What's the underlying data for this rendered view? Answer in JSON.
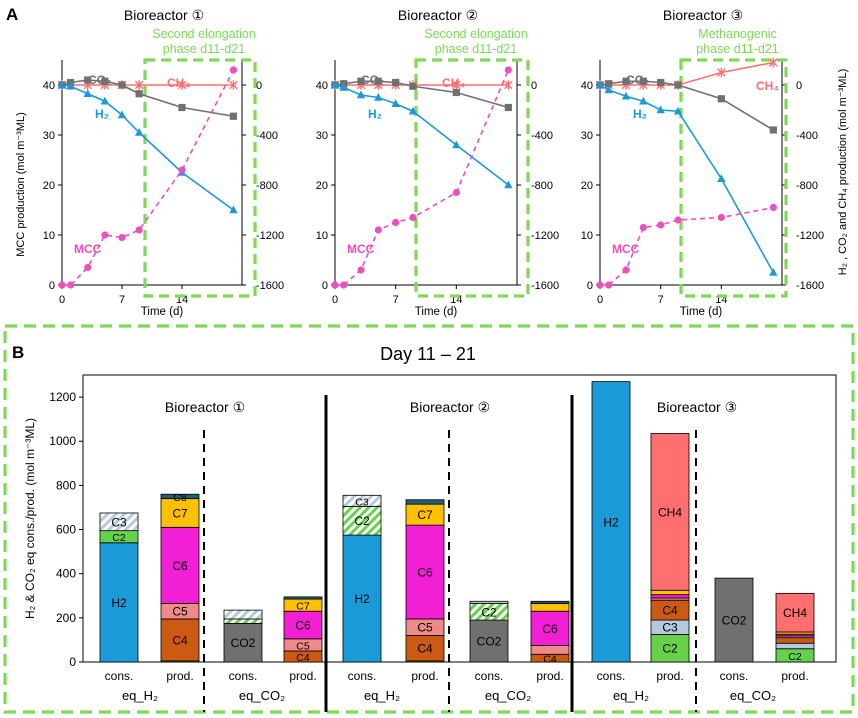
{
  "panel_a_label": "A",
  "panel_b_label": "B",
  "colors": {
    "H2": "#1a9ad6",
    "CO2": "#707070",
    "CH4": "#ff6f6f",
    "MCC": "#ef4ec0",
    "C2": "#66d14a",
    "C3": "#b7c9de",
    "C4": "#cc5a15",
    "C5": "#ef8a8a",
    "C6": "#f21fd4",
    "C7": "#ffc000",
    "C8": "#1f5f7a",
    "green_dash": "#7ed957"
  },
  "chart_data": [
    {
      "type": "line",
      "panel": "A1",
      "title": "Bioreactor ①",
      "annotation": [
        "Second elongation",
        "phase d11-d21"
      ],
      "xlabel": "Time (d)",
      "xticks": [
        0,
        7,
        14
      ],
      "ylabel_left": "MCC production (mol m⁻³ML)",
      "ylim_left": [
        0,
        45
      ],
      "yticks_left": [
        0,
        10,
        20,
        30,
        40
      ],
      "ylabel_right": "H₂ , CO₂ and CH₄ production (mol m⁻³ML)",
      "ylim_right": [
        -1600,
        200
      ],
      "yticks_right": [
        0,
        -400,
        -800,
        -1200,
        -1600
      ],
      "xlim": [
        0,
        21
      ],
      "series": [
        {
          "name": "MCC",
          "label": "MCC",
          "axis": "left",
          "x": [
            0,
            1,
            3,
            5,
            7,
            9,
            14,
            20
          ],
          "y": [
            0,
            0,
            3.5,
            10,
            9.5,
            11,
            23,
            43
          ]
        },
        {
          "name": "CO2",
          "label": "CO₂",
          "axis": "right",
          "x": [
            0,
            1,
            3,
            5,
            7,
            9,
            14,
            20
          ],
          "y": [
            0,
            20,
            40,
            30,
            0,
            -70,
            -180,
            -250
          ]
        },
        {
          "name": "CH4",
          "label": "CH₄",
          "axis": "right",
          "x": [
            0,
            1,
            3,
            5,
            7,
            9,
            14,
            20
          ],
          "y": [
            0,
            0,
            0,
            0,
            0,
            0,
            0,
            0
          ]
        },
        {
          "name": "H2",
          "label": "H₂",
          "axis": "right",
          "x": [
            0,
            1,
            3,
            5,
            7,
            9,
            14,
            20
          ],
          "y": [
            0,
            -10,
            -70,
            -130,
            -240,
            -380,
            -700,
            -1000
          ]
        }
      ]
    },
    {
      "type": "line",
      "panel": "A2",
      "title": "Bioreactor ②",
      "annotation": [
        "Second elongation",
        "phase d11-d21"
      ],
      "xlabel": "Time (d)",
      "xticks": [
        0,
        7,
        14
      ],
      "ylim_left": [
        0,
        45
      ],
      "yticks_left": [
        0,
        10,
        20,
        30,
        40
      ],
      "ylim_right": [
        -1600,
        200
      ],
      "yticks_right": [
        0,
        -400,
        -800,
        -1200,
        -1600
      ],
      "xlim": [
        0,
        21
      ],
      "series": [
        {
          "name": "MCC",
          "label": "MCC",
          "axis": "left",
          "x": [
            0,
            1,
            3,
            5,
            7,
            9,
            14,
            20
          ],
          "y": [
            0,
            0,
            3,
            11,
            12.5,
            13.5,
            18.5,
            43
          ]
        },
        {
          "name": "CO2",
          "label": "CO₂",
          "axis": "right",
          "x": [
            0,
            1,
            3,
            5,
            7,
            9,
            14,
            20
          ],
          "y": [
            0,
            10,
            30,
            30,
            20,
            -10,
            -60,
            -180
          ]
        },
        {
          "name": "CH4",
          "label": "CH₄",
          "axis": "right",
          "x": [
            0,
            1,
            3,
            5,
            7,
            9,
            14,
            20
          ],
          "y": [
            0,
            0,
            0,
            0,
            0,
            0,
            0,
            0
          ]
        },
        {
          "name": "H2",
          "label": "H₂",
          "axis": "right",
          "x": [
            0,
            1,
            3,
            5,
            7,
            9,
            14,
            20
          ],
          "y": [
            0,
            -20,
            -80,
            -100,
            -150,
            -210,
            -480,
            -800
          ]
        }
      ]
    },
    {
      "type": "line",
      "panel": "A3",
      "title": "Bioreactor ③",
      "annotation": [
        "Methanogenic",
        "phase d11-d21"
      ],
      "xlabel": "Time (d)",
      "xticks": [
        0,
        7,
        14
      ],
      "ylim_left": [
        0,
        45
      ],
      "yticks_left": [
        0,
        10,
        20,
        30,
        40
      ],
      "ylim_right": [
        -1600,
        200
      ],
      "yticks_right": [
        0,
        -400,
        -800,
        -1200,
        -1600
      ],
      "xlim": [
        0,
        21
      ],
      "series": [
        {
          "name": "MCC",
          "label": "MCC",
          "axis": "left",
          "x": [
            0,
            1,
            3,
            5,
            7,
            9,
            14,
            20
          ],
          "y": [
            0,
            0,
            3,
            11.5,
            12,
            13,
            13.5,
            15.5
          ]
        },
        {
          "name": "CO2",
          "label": "CO₂",
          "axis": "right",
          "x": [
            0,
            1,
            3,
            5,
            7,
            9,
            14,
            20
          ],
          "y": [
            0,
            10,
            30,
            30,
            20,
            0,
            -110,
            -360
          ]
        },
        {
          "name": "CH4",
          "label": "CH₄",
          "axis": "right",
          "x": [
            0,
            1,
            3,
            5,
            7,
            9,
            14,
            20
          ],
          "y": [
            0,
            0,
            0,
            0,
            0,
            0,
            100,
            180
          ]
        },
        {
          "name": "H2",
          "label": "H₂",
          "axis": "right",
          "x": [
            0,
            1,
            3,
            5,
            7,
            9,
            14,
            20
          ],
          "y": [
            0,
            -40,
            -90,
            -130,
            -200,
            -210,
            -750,
            -1500
          ]
        }
      ]
    },
    {
      "type": "bar",
      "stacked": true,
      "panel": "B",
      "title": "Day 11 – 21",
      "ylabel": "H₂ & CO₂ eq cons./prod. (mol m⁻³ML)",
      "ylim": [
        0,
        1300
      ],
      "yticks": [
        0,
        200,
        400,
        600,
        800,
        1000,
        1200
      ],
      "reactors": [
        "Bioreactor ①",
        "Bioreactor ②",
        "Bioreactor ③"
      ],
      "group_labels": [
        "eq_H₂",
        "eq_CO₂"
      ],
      "bar_labels": [
        "cons.",
        "prod."
      ],
      "bars": [
        {
          "reactor": 1,
          "group": "eq_H2",
          "bar": "cons.",
          "segments": [
            {
              "name": "H2",
              "label": "H2",
              "value": 540
            },
            {
              "name": "C2",
              "label": "C2",
              "value": 55,
              "hatch": false
            },
            {
              "name": "C3",
              "label": "C3",
              "value": 80,
              "hatch": true
            }
          ]
        },
        {
          "reactor": 1,
          "group": "eq_H2",
          "bar": "prod.",
          "segments": [
            {
              "name": "C2",
              "value": 5
            },
            {
              "name": "C4",
              "label": "C4",
              "value": 190
            },
            {
              "name": "C5",
              "label": "C5",
              "value": 70
            },
            {
              "name": "C6",
              "label": "C6",
              "value": 345
            },
            {
              "name": "C7",
              "label": "C7",
              "value": 130
            },
            {
              "name": "C8",
              "label": "C8",
              "value": 20
            }
          ]
        },
        {
          "reactor": 1,
          "group": "eq_CO2",
          "bar": "cons.",
          "segments": [
            {
              "name": "CO2",
              "label": "CO2",
              "value": 175
            },
            {
              "name": "C2",
              "value": 20,
              "hatch": true
            },
            {
              "name": "C3",
              "value": 40,
              "hatch": true
            }
          ]
        },
        {
          "reactor": 1,
          "group": "eq_CO2",
          "bar": "prod.",
          "segments": [
            {
              "name": "C4",
              "label": "C4",
              "value": 50
            },
            {
              "name": "C5",
              "label": "C5",
              "value": 55
            },
            {
              "name": "C6",
              "label": "C6",
              "value": 125
            },
            {
              "name": "C7",
              "label": "C7",
              "value": 55
            },
            {
              "name": "C8",
              "value": 10
            }
          ]
        },
        {
          "reactor": 2,
          "group": "eq_H2",
          "bar": "cons.",
          "segments": [
            {
              "name": "H2",
              "label": "H2",
              "value": 575
            },
            {
              "name": "C2",
              "label": "C2",
              "value": 130,
              "hatch": true
            },
            {
              "name": "C3",
              "label": "C3",
              "value": 50,
              "hatch": true
            }
          ]
        },
        {
          "reactor": 2,
          "group": "eq_H2",
          "bar": "prod.",
          "segments": [
            {
              "name": "C2",
              "value": 5
            },
            {
              "name": "C4",
              "label": "C4",
              "value": 115
            },
            {
              "name": "C5",
              "label": "C5",
              "value": 75
            },
            {
              "name": "C6",
              "label": "C6",
              "value": 425
            },
            {
              "name": "C7",
              "label": "C7",
              "value": 95
            },
            {
              "name": "C8",
              "value": 20
            }
          ]
        },
        {
          "reactor": 2,
          "group": "eq_CO2",
          "bar": "cons.",
          "segments": [
            {
              "name": "CO2",
              "label": "CO2",
              "value": 190
            },
            {
              "name": "C2",
              "label": "C2",
              "value": 75,
              "hatch": true
            },
            {
              "name": "C3",
              "value": 10
            }
          ]
        },
        {
          "reactor": 2,
          "group": "eq_CO2",
          "bar": "prod.",
          "segments": [
            {
              "name": "C4",
              "label": "C4",
              "value": 35
            },
            {
              "name": "C5",
              "value": 40
            },
            {
              "name": "C6",
              "label": "C6",
              "value": 155
            },
            {
              "name": "C7",
              "value": 35
            },
            {
              "name": "C8",
              "value": 10
            }
          ]
        },
        {
          "reactor": 3,
          "group": "eq_H2",
          "bar": "cons.",
          "segments": [
            {
              "name": "H2",
              "label": "H2",
              "value": 1270
            }
          ]
        },
        {
          "reactor": 3,
          "group": "eq_H2",
          "bar": "prod.",
          "segments": [
            {
              "name": "C2",
              "label": "C2",
              "value": 125
            },
            {
              "name": "C3",
              "label": "C3",
              "value": 65
            },
            {
              "name": "C4",
              "label": "C4",
              "value": 90
            },
            {
              "name": "C5",
              "value": 10
            },
            {
              "name": "C6",
              "value": 15
            },
            {
              "name": "C7",
              "value": 20
            },
            {
              "name": "CH4",
              "label": "CH4",
              "value": 710
            }
          ]
        },
        {
          "reactor": 3,
          "group": "eq_CO2",
          "bar": "cons.",
          "segments": [
            {
              "name": "CO2",
              "label": "CO2",
              "value": 380
            }
          ]
        },
        {
          "reactor": 3,
          "group": "eq_CO2",
          "bar": "prod.",
          "segments": [
            {
              "name": "C2",
              "label": "C2",
              "value": 60
            },
            {
              "name": "C3",
              "value": 25
            },
            {
              "name": "C4",
              "value": 25
            },
            {
              "name": "C5",
              "value": 8
            },
            {
              "name": "C6",
              "value": 8
            },
            {
              "name": "C7",
              "value": 10
            },
            {
              "name": "CH4",
              "label": "CH4",
              "value": 175
            }
          ]
        }
      ]
    }
  ]
}
